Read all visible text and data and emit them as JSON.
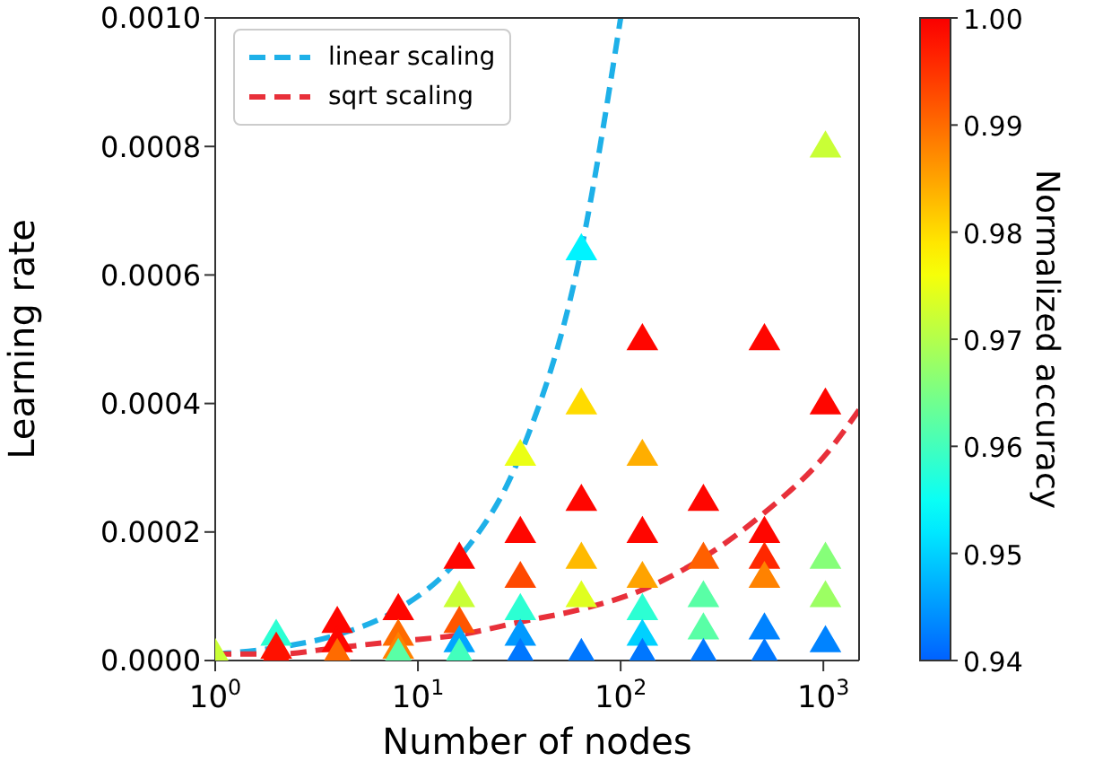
{
  "chart_data": {
    "type": "scatter",
    "xlabel": "Number of nodes",
    "ylabel": "Learning rate",
    "clabel": "Normalized accuracy",
    "log": "x",
    "grid": false,
    "legend": "top left",
    "xlim": [
      1,
      1500
    ],
    "xticks": [
      {
        "value": 1,
        "label": "10$^{0}$"
      },
      {
        "value": 10,
        "label": "10$^{1}$"
      },
      {
        "value": 100,
        "label": "10$^{2}$"
      },
      {
        "value": 1000,
        "label": "10$^{3}$"
      }
    ],
    "ylim": [
      0,
      0.001
    ],
    "yticks": [
      {
        "value": 0,
        "label": "0.0000"
      },
      {
        "value": 0.0002,
        "label": "0.0002"
      },
      {
        "value": 0.0004,
        "label": "0.0004"
      },
      {
        "value": 0.0006,
        "label": "0.0006"
      },
      {
        "value": 0.0008,
        "label": "0.0008"
      },
      {
        "value": 0.001,
        "label": "0.0010"
      }
    ],
    "clim": [
      0.94,
      1.0
    ],
    "cticks": [
      0.94,
      0.95,
      0.96,
      0.97,
      0.98,
      0.99,
      {
        "value": 1.0,
        "label": "1.00"
      }
    ],
    "series": [
      {
        "marker": "triangle",
        "colors": [
          "#c9ff36",
          "#2cffd3",
          "#ff1100",
          "#ff1100",
          "#ff0600",
          "#ff0600",
          "#ff6b00",
          "#ff0600",
          "#ff6b00",
          "#ff8200",
          "#59ffa6",
          "#ff0600",
          "#c9ff36",
          "#ff5500",
          "#00a4ff",
          "#42ffbd",
          "#ebff14",
          "#ff0600",
          "#ff4900",
          "#2cffd3",
          "#0099ff",
          "#0077ff",
          "#00f3ff",
          "#ffdb00",
          "#ff0600",
          "#ffba00",
          "#dfff20",
          "#0077ff",
          "#ff0600",
          "#ffae00",
          "#ff0600",
          "#ffa300",
          "#2cffd3",
          "#00d1ff",
          "#0077ff",
          "#ff0600",
          "#ff6000",
          "#59ffa6",
          "#59ffa6",
          "#0077ff",
          "#ff0600",
          "#ff0600",
          "#ff2800",
          "#ff8200",
          "#0083ff",
          "#0077ff",
          "#c9ff36",
          "#ff0600",
          "#86ff79",
          "#9cff63",
          "#0083ff"
        ],
        "x": [
          1,
          2,
          2,
          2,
          4,
          4,
          4,
          8,
          8,
          8,
          8,
          16,
          16,
          16,
          16,
          16,
          32,
          32,
          32,
          32,
          32,
          32,
          64,
          64,
          64,
          64,
          64,
          64,
          128,
          128,
          128,
          128,
          128,
          128,
          128,
          256,
          256,
          256,
          256,
          256,
          512,
          512,
          512,
          512,
          512,
          512,
          1024,
          1024,
          1024,
          1024,
          1024
        ],
        "values": [
          1e-05,
          4e-05,
          2e-05,
          1e-05,
          6e-05,
          3e-05,
          1e-05,
          8e-05,
          4e-05,
          2e-05,
          1e-05,
          0.00016,
          0.0001,
          6e-05,
          3e-05,
          1e-05,
          0.00032,
          0.0002,
          0.00013,
          8e-05,
          4e-05,
          1e-05,
          0.00064,
          0.0004,
          0.00025,
          0.00016,
          0.0001,
          1e-05,
          0.0005,
          0.00032,
          0.0002,
          0.00013,
          8e-05,
          4e-05,
          1e-05,
          0.00025,
          0.00016,
          0.0001,
          5e-05,
          1e-05,
          0.0005,
          0.0002,
          0.00016,
          0.00013,
          5e-05,
          1e-05,
          0.0008,
          0.0004,
          0.00016,
          0.0001,
          3e-05
        ],
        "cvalues": [
          0.972,
          0.958,
          0.998,
          0.998,
          0.999,
          0.999,
          0.99,
          0.999,
          0.99,
          0.988,
          0.962,
          0.999,
          0.972,
          0.992,
          0.946,
          0.96,
          0.975,
          0.999,
          0.993,
          0.958,
          0.945,
          0.942,
          0.953,
          0.98,
          0.999,
          0.983,
          0.974,
          0.942,
          0.999,
          0.984,
          0.999,
          0.985,
          0.958,
          0.95,
          0.942,
          0.999,
          0.991,
          0.962,
          0.962,
          0.942,
          0.999,
          0.999,
          0.996,
          0.988,
          0.943,
          0.942,
          0.972,
          0.999,
          0.966,
          0.968,
          0.943
        ]
      },
      {
        "type": "line",
        "name": "linear scaling",
        "color": "#1eb0e8",
        "line_style": "dashed",
        "marker": "none",
        "x": [
          1,
          2,
          4,
          8,
          16,
          32,
          64,
          100
        ],
        "values": [
          1e-05,
          2e-05,
          4e-05,
          8e-05,
          0.00016,
          0.00032,
          0.00064,
          0.001
        ]
      },
      {
        "type": "line",
        "name": "sqrt scaling",
        "color": "#e8303a",
        "line_style": "dashed",
        "marker": "none",
        "x": [
          1,
          2,
          4,
          8,
          16,
          32,
          64,
          128,
          256,
          512,
          1024,
          1500
        ],
        "values": [
          1e-05,
          1e-05,
          2e-05,
          3e-05,
          4e-05,
          6e-05,
          8e-05,
          0.00011,
          0.00016,
          0.00023,
          0.00032,
          0.00039
        ]
      }
    ]
  }
}
